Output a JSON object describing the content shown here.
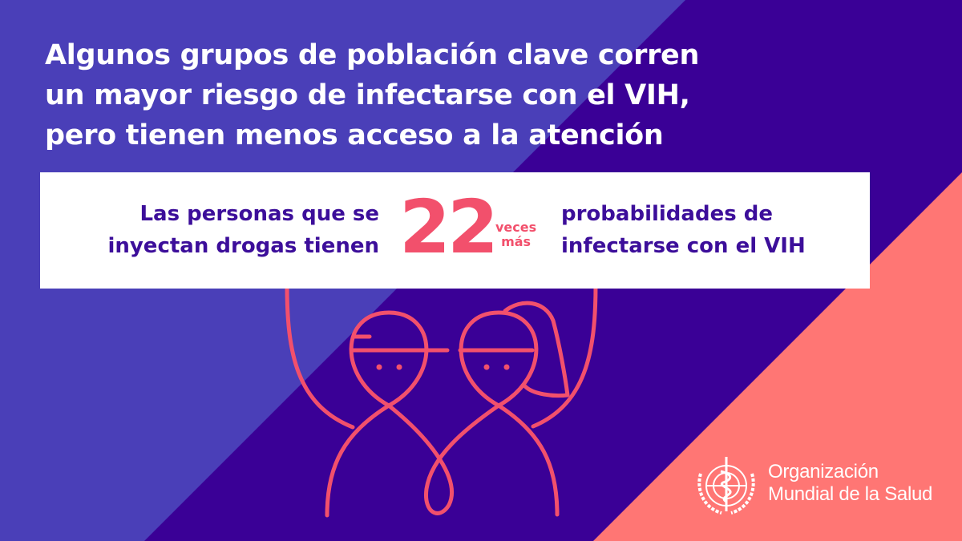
{
  "colors": {
    "light_band": "#4a3fb8",
    "dark_band": "#3a0096",
    "salmon": "#ff7674",
    "accent": "#f2506c",
    "text_purple": "#3c0e9a"
  },
  "headline": {
    "lines": [
      "Algunos grupos de población clave corren",
      "un mayor riesgo de infectarse con el VIH,",
      "pero tienen menos acceso a la atención"
    ]
  },
  "card": {
    "left_lines": [
      "Las personas que se",
      "inyectan drogas tienen"
    ],
    "number": "22",
    "unit_lines": [
      "veces",
      "más"
    ],
    "right_lines": [
      "probabilidades de",
      "infectarse con el VIH"
    ]
  },
  "illustration": {
    "icon": "two-people-holding-sign"
  },
  "logo": {
    "icon": "who-emblem",
    "lines": [
      "Organización",
      "Mundial de la Salud"
    ]
  }
}
